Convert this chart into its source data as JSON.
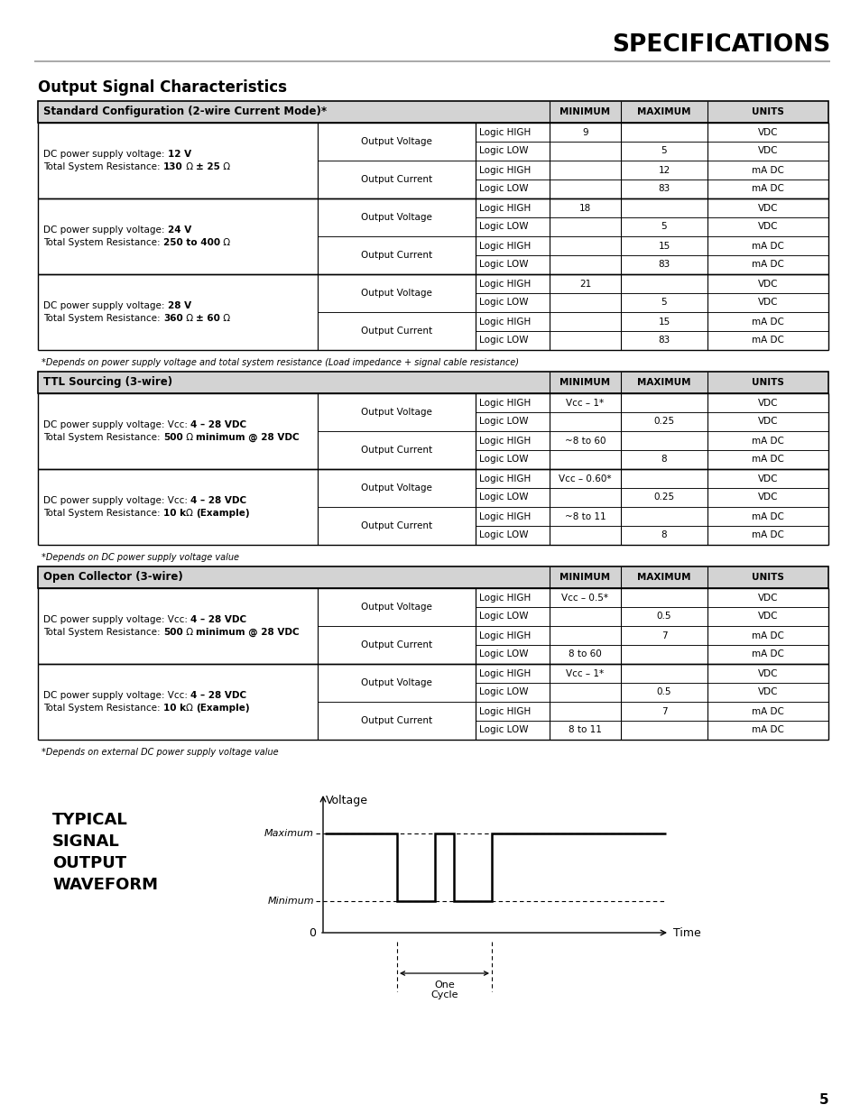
{
  "title": "SPECIFICATIONS",
  "section_title": "Output Signal Characteristics",
  "page_number": "5",
  "bg_color": "#ffffff",
  "table1": {
    "header": "Standard Configuration (2-wire Current Mode)*",
    "header_bg": "#d3d3d3",
    "rows": [
      {
        "label_plain": "DC power supply voltage: ",
        "label_bold1": "12 V",
        "label_plain2": "\nTotal System Resistance: ",
        "label_bold2": "130",
        "label_plain3": " Ω ",
        "label_bold3": "± 25",
        "label_plain4": " Ω",
        "sub_rows": [
          {
            "type": "Output Voltage",
            "logic": "Logic HIGH",
            "min": "9",
            "max": "",
            "units": "VDC"
          },
          {
            "type": "Output Voltage",
            "logic": "Logic LOW",
            "min": "",
            "max": "5",
            "units": "VDC"
          },
          {
            "type": "Output Current",
            "logic": "Logic HIGH",
            "min": "",
            "max": "12",
            "units": "mA DC"
          },
          {
            "type": "Output Current",
            "logic": "Logic LOW",
            "min": "",
            "max": "83",
            "units": "mA DC"
          }
        ]
      },
      {
        "label_plain": "DC power supply voltage: ",
        "label_bold1": "24 V",
        "label_plain2": "\nTotal System Resistance: ",
        "label_bold2": "250 to 400",
        "label_plain3": " Ω",
        "label_bold3": "",
        "label_plain4": "",
        "sub_rows": [
          {
            "type": "Output Voltage",
            "logic": "Logic HIGH",
            "min": "18",
            "max": "",
            "units": "VDC"
          },
          {
            "type": "Output Voltage",
            "logic": "Logic LOW",
            "min": "",
            "max": "5",
            "units": "VDC"
          },
          {
            "type": "Output Current",
            "logic": "Logic HIGH",
            "min": "",
            "max": "15",
            "units": "mA DC"
          },
          {
            "type": "Output Current",
            "logic": "Logic LOW",
            "min": "",
            "max": "83",
            "units": "mA DC"
          }
        ]
      },
      {
        "label_plain": "DC power supply voltage: ",
        "label_bold1": "28 V",
        "label_plain2": "\nTotal System Resistance: ",
        "label_bold2": "360",
        "label_plain3": " Ω ",
        "label_bold3": "± 60",
        "label_plain4": " Ω",
        "sub_rows": [
          {
            "type": "Output Voltage",
            "logic": "Logic HIGH",
            "min": "21",
            "max": "",
            "units": "VDC"
          },
          {
            "type": "Output Voltage",
            "logic": "Logic LOW",
            "min": "",
            "max": "5",
            "units": "VDC"
          },
          {
            "type": "Output Current",
            "logic": "Logic HIGH",
            "min": "",
            "max": "15",
            "units": "mA DC"
          },
          {
            "type": "Output Current",
            "logic": "Logic LOW",
            "min": "",
            "max": "83",
            "units": "mA DC"
          }
        ]
      }
    ],
    "footnote": "*Depends on power supply voltage and total system resistance (Load impedance + signal cable resistance)"
  },
  "table2": {
    "header": "TTL Sourcing (3-wire)",
    "header_bg": "#d3d3d3",
    "rows": [
      {
        "label_plain": "DC power supply voltage: Vcc: ",
        "label_bold1": "4 – 28 VDC",
        "label_plain2": "\nTotal System Resistance: ",
        "label_bold2": "500",
        "label_plain3": " Ω ",
        "label_bold3": "minimum @ 28 VDC",
        "label_plain4": "",
        "sub_rows": [
          {
            "type": "Output Voltage",
            "logic": "Logic HIGH",
            "min": "Vcc – 1*",
            "max": "",
            "units": "VDC"
          },
          {
            "type": "Output Voltage",
            "logic": "Logic LOW",
            "min": "",
            "max": "0.25",
            "units": "VDC"
          },
          {
            "type": "Output Current",
            "logic": "Logic HIGH",
            "min": "~8 to 60",
            "max": "",
            "units": "mA DC"
          },
          {
            "type": "Output Current",
            "logic": "Logic LOW",
            "min": "",
            "max": "8",
            "units": "mA DC"
          }
        ]
      },
      {
        "label_plain": "DC power supply voltage: Vcc: ",
        "label_bold1": "4 – 28 VDC",
        "label_plain2": "\nTotal System Resistance: ",
        "label_bold2": "10 k",
        "label_plain3": "Ω ",
        "label_bold3": "(Example)",
        "label_plain4": "",
        "sub_rows": [
          {
            "type": "Output Voltage",
            "logic": "Logic HIGH",
            "min": "Vcc – 0.60*",
            "max": "",
            "units": "VDC"
          },
          {
            "type": "Output Voltage",
            "logic": "Logic LOW",
            "min": "",
            "max": "0.25",
            "units": "VDC"
          },
          {
            "type": "Output Current",
            "logic": "Logic HIGH",
            "min": "~8 to 11",
            "max": "",
            "units": "mA DC"
          },
          {
            "type": "Output Current",
            "logic": "Logic LOW",
            "min": "",
            "max": "8",
            "units": "mA DC"
          }
        ]
      }
    ],
    "footnote": "*Depends on DC power supply voltage value"
  },
  "table3": {
    "header": "Open Collector (3-wire)",
    "header_bg": "#d3d3d3",
    "rows": [
      {
        "label_plain": "DC power supply voltage: Vcc: ",
        "label_bold1": "4 – 28 VDC",
        "label_plain2": "\nTotal System Resistance: ",
        "label_bold2": "500",
        "label_plain3": " Ω ",
        "label_bold3": "minimum @ 28 VDC",
        "label_plain4": "",
        "sub_rows": [
          {
            "type": "Output Voltage",
            "logic": "Logic HIGH",
            "min": "Vcc – 0.5*",
            "max": "",
            "units": "VDC"
          },
          {
            "type": "Output Voltage",
            "logic": "Logic LOW",
            "min": "",
            "max": "0.5",
            "units": "VDC"
          },
          {
            "type": "Output Current",
            "logic": "Logic HIGH",
            "min": "",
            "max": "7",
            "units": "mA DC"
          },
          {
            "type": "Output Current",
            "logic": "Logic LOW",
            "min": "8 to 60",
            "max": "",
            "units": "mA DC"
          }
        ]
      },
      {
        "label_plain": "DC power supply voltage: Vcc: ",
        "label_bold1": "4 – 28 VDC",
        "label_plain2": "\nTotal System Resistance: ",
        "label_bold2": "10 k",
        "label_plain3": "Ω ",
        "label_bold3": "(Example)",
        "label_plain4": "",
        "sub_rows": [
          {
            "type": "Output Voltage",
            "logic": "Logic HIGH",
            "min": "Vcc – 1*",
            "max": "",
            "units": "VDC"
          },
          {
            "type": "Output Voltage",
            "logic": "Logic LOW",
            "min": "",
            "max": "0.5",
            "units": "VDC"
          },
          {
            "type": "Output Current",
            "logic": "Logic HIGH",
            "min": "",
            "max": "7",
            "units": "mA DC"
          },
          {
            "type": "Output Current",
            "logic": "Logic LOW",
            "min": "8 to 11",
            "max": "",
            "units": "mA DC"
          }
        ]
      }
    ],
    "footnote": "*Depends on external DC power supply voltage value"
  },
  "waveform_label": [
    "TYPICAL",
    "SIGNAL",
    "OUTPUT",
    "WAVEFORM"
  ],
  "waveform_max_label": "Maximum",
  "waveform_min_label": "Minimum",
  "waveform_x_label": "Time",
  "waveform_y_title": "Voltage",
  "waveform_cycle_label": [
    "One",
    "Cycle"
  ],
  "waveform_zero": "0"
}
